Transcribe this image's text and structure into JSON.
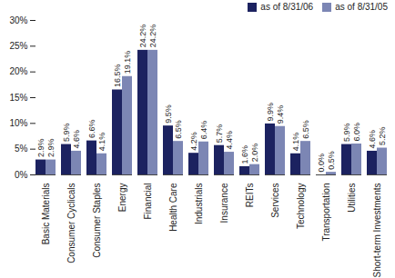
{
  "chart_data": {
    "type": "bar",
    "categories": [
      "Basic Materials",
      "Consumer Cyclicals",
      "Consumer Staples",
      "Energy",
      "Financial",
      "Health Care",
      "Industrials",
      "Insurance",
      "REITs",
      "Services",
      "Technology",
      "Transportation",
      "Utilities",
      "Short-term Investments"
    ],
    "series": [
      {
        "name": "as of 8/31/06",
        "color": "#1c2260",
        "values": [
          2.9,
          5.9,
          6.6,
          16.5,
          24.2,
          9.5,
          4.2,
          5.7,
          1.6,
          9.9,
          4.1,
          0.0,
          5.9,
          4.6
        ],
        "value_labels": [
          "2.9%",
          "5.9%",
          "6.6%",
          "16.5%",
          "24.2%",
          "9.5%",
          "4.2%",
          "5.7%",
          "1.6%",
          "9.9%",
          "4.1%",
          "0.0%",
          "5.9%",
          "4.6%"
        ]
      },
      {
        "name": "as of 8/31/05",
        "color": "#7c86b4",
        "values": [
          2.9,
          4.6,
          4.1,
          19.1,
          24.2,
          6.5,
          6.4,
          4.4,
          2.0,
          9.4,
          6.5,
          0.5,
          6.0,
          5.2
        ],
        "value_labels": [
          "2.9%",
          "4.6%",
          "4.1%",
          "19.1%",
          "24.2%",
          "6.5%",
          "6.4%",
          "4.4%",
          "2.0%",
          "9.4%",
          "6.5%",
          "0.5%",
          "6.0%",
          "5.2%"
        ]
      }
    ],
    "ylim": [
      0,
      30
    ],
    "yticks": [
      {
        "value": 0,
        "label": "0%"
      },
      {
        "value": 5,
        "label": "5%"
      },
      {
        "value": 10,
        "label": "10%"
      },
      {
        "value": 15,
        "label": "15%"
      },
      {
        "value": 20,
        "label": "20%"
      },
      {
        "value": 25,
        "label": "25%"
      },
      {
        "value": 30,
        "label": "30%"
      }
    ],
    "grid": false,
    "data_labels": true,
    "legend": "upper right"
  }
}
